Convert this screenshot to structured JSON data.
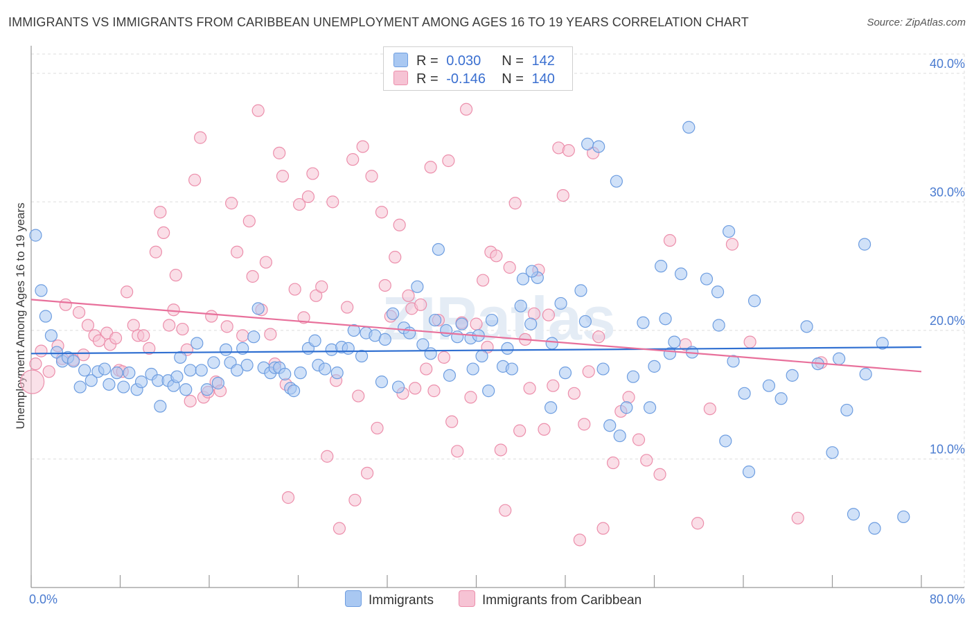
{
  "title": "IMMIGRANTS VS IMMIGRANTS FROM CARIBBEAN UNEMPLOYMENT AMONG AGES 16 TO 19 YEARS CORRELATION CHART",
  "source": "Source: ZipAtlas.com",
  "watermark": "ZIPatlas",
  "legend": {
    "r_label": "R =",
    "n_label": "N =",
    "series": [
      {
        "r": "0.030",
        "n": "142"
      },
      {
        "r": "-0.146",
        "n": "140"
      }
    ]
  },
  "bottom_legend": [
    "Immigrants",
    "Immigrants from Caribbean"
  ],
  "colors": {
    "blue_fill": "#a9c8f2",
    "blue_stroke": "#6d9de0",
    "blue_line": "#2f6fd1",
    "pink_fill": "#f6c3d4",
    "pink_stroke": "#ec8eab",
    "pink_line": "#e8709b",
    "axis_text": "#4a7bd0",
    "grid": "#dddddd"
  },
  "chart_data": {
    "type": "scatter",
    "title": "IMMIGRANTS VS IMMIGRANTS FROM CARIBBEAN UNEMPLOYMENT AMONG AGES 16 TO 19 YEARS CORRELATION CHART",
    "xlabel": "",
    "ylabel": "Unemployment Among Ages 16 to 19 years",
    "xlim": [
      0,
      80
    ],
    "ylim": [
      0,
      41.5
    ],
    "x_tick_labels": [
      {
        "value": 0,
        "label": "0.0%"
      },
      {
        "value": 80,
        "label": "80.0%"
      }
    ],
    "y_tick_labels": [
      {
        "value": 10,
        "label": "10.0%"
      },
      {
        "value": 20,
        "label": "20.0%"
      },
      {
        "value": 30,
        "label": "30.0%"
      },
      {
        "value": 40,
        "label": "40.0%"
      }
    ],
    "series": [
      {
        "name": "Immigrants",
        "r": 0.03,
        "n": 142,
        "trend": {
          "x0": 0,
          "y0": 18.2,
          "x1": 80,
          "y1": 18.7
        },
        "points": [
          [
            0.4,
            27.4
          ],
          [
            0.9,
            23.1
          ],
          [
            1.3,
            21.1
          ],
          [
            1.8,
            19.6
          ],
          [
            2.3,
            18.3
          ],
          [
            2.8,
            17.6
          ],
          [
            3.3,
            17.9
          ],
          [
            3.8,
            17.6
          ],
          [
            4.4,
            15.6
          ],
          [
            4.8,
            16.9
          ],
          [
            5.4,
            16.1
          ],
          [
            6.0,
            16.8
          ],
          [
            6.6,
            17.0
          ],
          [
            7.0,
            15.8
          ],
          [
            7.7,
            16.7
          ],
          [
            8.3,
            15.6
          ],
          [
            8.8,
            16.7
          ],
          [
            9.5,
            15.4
          ],
          [
            9.9,
            16.0
          ],
          [
            10.8,
            16.6
          ],
          [
            11.4,
            16.1
          ],
          [
            11.6,
            14.1
          ],
          [
            12.3,
            16.1
          ],
          [
            12.8,
            15.7
          ],
          [
            13.1,
            16.4
          ],
          [
            13.4,
            17.9
          ],
          [
            13.9,
            15.4
          ],
          [
            14.3,
            16.9
          ],
          [
            14.9,
            19.0
          ],
          [
            15.3,
            16.9
          ],
          [
            15.8,
            15.4
          ],
          [
            16.4,
            17.5
          ],
          [
            16.8,
            15.9
          ],
          [
            17.5,
            18.5
          ],
          [
            17.9,
            17.5
          ],
          [
            18.5,
            16.9
          ],
          [
            19.0,
            18.6
          ],
          [
            19.4,
            17.3
          ],
          [
            20.0,
            19.5
          ],
          [
            20.4,
            21.7
          ],
          [
            20.9,
            17.1
          ],
          [
            21.5,
            16.7
          ],
          [
            21.9,
            17.1
          ],
          [
            22.3,
            17.1
          ],
          [
            22.8,
            16.6
          ],
          [
            23.3,
            15.5
          ],
          [
            23.6,
            15.3
          ],
          [
            24.2,
            16.7
          ],
          [
            24.9,
            18.6
          ],
          [
            25.5,
            19.2
          ],
          [
            25.8,
            17.3
          ],
          [
            26.4,
            17.0
          ],
          [
            27.0,
            18.5
          ],
          [
            27.5,
            16.7
          ],
          [
            27.9,
            18.7
          ],
          [
            28.5,
            18.6
          ],
          [
            29.0,
            20.0
          ],
          [
            29.7,
            18.0
          ],
          [
            30.1,
            19.8
          ],
          [
            30.9,
            19.6
          ],
          [
            31.5,
            16.0
          ],
          [
            31.8,
            19.3
          ],
          [
            32.5,
            21.3
          ],
          [
            33.0,
            15.6
          ],
          [
            33.5,
            20.2
          ],
          [
            34.0,
            19.8
          ],
          [
            34.7,
            23.4
          ],
          [
            35.2,
            18.9
          ],
          [
            35.9,
            18.2
          ],
          [
            36.3,
            20.8
          ],
          [
            36.6,
            26.3
          ],
          [
            37.3,
            20.0
          ],
          [
            37.6,
            16.5
          ],
          [
            38.3,
            19.5
          ],
          [
            38.7,
            20.5
          ],
          [
            39.5,
            19.4
          ],
          [
            39.7,
            17.0
          ],
          [
            40.2,
            19.6
          ],
          [
            40.5,
            18.0
          ],
          [
            41.1,
            15.3
          ],
          [
            41.4,
            20.8
          ],
          [
            42.4,
            17.2
          ],
          [
            42.8,
            18.6
          ],
          [
            43.2,
            17.0
          ],
          [
            44.0,
            21.9
          ],
          [
            44.2,
            24.0
          ],
          [
            44.9,
            20.5
          ],
          [
            45.5,
            24.1
          ],
          [
            45.0,
            24.6
          ],
          [
            46.7,
            14.0
          ],
          [
            46.8,
            19.0
          ],
          [
            47.6,
            22.1
          ],
          [
            48.0,
            16.7
          ],
          [
            49.4,
            23.1
          ],
          [
            49.8,
            20.7
          ],
          [
            50.0,
            34.5
          ],
          [
            51.0,
            34.3
          ],
          [
            51.4,
            17.0
          ],
          [
            52.0,
            12.6
          ],
          [
            52.6,
            31.6
          ],
          [
            52.9,
            11.8
          ],
          [
            53.5,
            14.0
          ],
          [
            54.1,
            16.4
          ],
          [
            55.0,
            20.6
          ],
          [
            55.6,
            14.0
          ],
          [
            56.0,
            17.2
          ],
          [
            56.6,
            25.0
          ],
          [
            57.0,
            20.9
          ],
          [
            57.4,
            18.2
          ],
          [
            57.8,
            19.1
          ],
          [
            58.4,
            24.4
          ],
          [
            59.1,
            35.8
          ],
          [
            59.4,
            18.3
          ],
          [
            60.7,
            24.0
          ],
          [
            61.7,
            23.0
          ],
          [
            61.8,
            20.4
          ],
          [
            62.4,
            11.4
          ],
          [
            62.7,
            27.7
          ],
          [
            63.1,
            17.6
          ],
          [
            64.1,
            15.1
          ],
          [
            64.5,
            9.0
          ],
          [
            65.0,
            22.3
          ],
          [
            66.3,
            15.7
          ],
          [
            67.4,
            14.7
          ],
          [
            68.4,
            16.5
          ],
          [
            69.7,
            20.3
          ],
          [
            70.7,
            17.4
          ],
          [
            72.0,
            10.5
          ],
          [
            72.6,
            17.8
          ],
          [
            73.3,
            13.8
          ],
          [
            73.9,
            5.7
          ],
          [
            74.9,
            26.7
          ],
          [
            75.0,
            16.6
          ],
          [
            75.8,
            4.6
          ],
          [
            76.5,
            19.0
          ],
          [
            78.4,
            5.5
          ]
        ]
      },
      {
        "name": "Immigrants from Caribbean",
        "r": -0.146,
        "n": 140,
        "trend": {
          "x0": 0,
          "y0": 22.4,
          "x1": 80,
          "y1": 16.8
        },
        "points": [
          [
            0.1,
            16.0
          ],
          [
            0.4,
            17.4
          ],
          [
            0.9,
            18.4
          ],
          [
            1.6,
            16.8
          ],
          [
            2.4,
            18.8
          ],
          [
            2.8,
            17.8
          ],
          [
            3.1,
            22.0
          ],
          [
            3.8,
            17.7
          ],
          [
            4.3,
            21.4
          ],
          [
            4.7,
            18.1
          ],
          [
            5.1,
            20.4
          ],
          [
            5.7,
            19.6
          ],
          [
            6.1,
            19.2
          ],
          [
            6.8,
            19.8
          ],
          [
            7.1,
            18.9
          ],
          [
            7.6,
            19.4
          ],
          [
            7.9,
            16.9
          ],
          [
            8.2,
            16.8
          ],
          [
            8.6,
            23.0
          ],
          [
            9.2,
            20.4
          ],
          [
            9.6,
            19.6
          ],
          [
            10.1,
            19.6
          ],
          [
            10.6,
            18.6
          ],
          [
            11.2,
            26.1
          ],
          [
            11.6,
            29.2
          ],
          [
            11.9,
            27.6
          ],
          [
            12.4,
            20.4
          ],
          [
            12.8,
            21.6
          ],
          [
            13.0,
            24.3
          ],
          [
            13.6,
            20.1
          ],
          [
            14.0,
            18.5
          ],
          [
            14.3,
            14.5
          ],
          [
            14.7,
            31.7
          ],
          [
            15.2,
            35.0
          ],
          [
            15.5,
            14.8
          ],
          [
            15.9,
            15.2
          ],
          [
            16.2,
            21.1
          ],
          [
            16.6,
            16.0
          ],
          [
            17.0,
            15.3
          ],
          [
            17.6,
            20.3
          ],
          [
            18.0,
            29.9
          ],
          [
            18.5,
            26.1
          ],
          [
            19.0,
            19.6
          ],
          [
            19.6,
            28.5
          ],
          [
            19.9,
            24.2
          ],
          [
            20.4,
            37.1
          ],
          [
            20.7,
            21.6
          ],
          [
            21.1,
            25.3
          ],
          [
            21.5,
            19.7
          ],
          [
            21.9,
            17.4
          ],
          [
            22.3,
            33.8
          ],
          [
            22.6,
            32.0
          ],
          [
            22.9,
            15.8
          ],
          [
            23.1,
            7.0
          ],
          [
            23.7,
            23.2
          ],
          [
            24.1,
            29.8
          ],
          [
            24.5,
            21.0
          ],
          [
            24.9,
            30.4
          ],
          [
            25.3,
            32.2
          ],
          [
            25.6,
            22.7
          ],
          [
            26.1,
            23.4
          ],
          [
            26.6,
            10.2
          ],
          [
            27.1,
            30.0
          ],
          [
            27.4,
            16.1
          ],
          [
            27.7,
            4.6
          ],
          [
            28.4,
            21.8
          ],
          [
            28.9,
            33.3
          ],
          [
            29.1,
            6.8
          ],
          [
            29.4,
            14.9
          ],
          [
            29.8,
            34.3
          ],
          [
            30.2,
            8.9
          ],
          [
            30.6,
            32.0
          ],
          [
            31.1,
            12.4
          ],
          [
            31.5,
            29.2
          ],
          [
            31.8,
            23.5
          ],
          [
            32.3,
            21.1
          ],
          [
            32.7,
            25.7
          ],
          [
            33.1,
            28.2
          ],
          [
            33.4,
            15.1
          ],
          [
            33.9,
            22.7
          ],
          [
            34.2,
            21.7
          ],
          [
            34.5,
            15.5
          ],
          [
            35.0,
            22.0
          ],
          [
            35.5,
            17.0
          ],
          [
            35.9,
            32.7
          ],
          [
            36.2,
            15.3
          ],
          [
            36.6,
            20.8
          ],
          [
            37.1,
            17.9
          ],
          [
            37.5,
            33.2
          ],
          [
            37.8,
            12.9
          ],
          [
            38.3,
            10.6
          ],
          [
            38.7,
            20.6
          ],
          [
            39.1,
            37.2
          ],
          [
            39.5,
            14.8
          ],
          [
            40.0,
            20.5
          ],
          [
            40.6,
            23.9
          ],
          [
            41.0,
            18.7
          ],
          [
            41.3,
            26.1
          ],
          [
            41.8,
            25.8
          ],
          [
            42.2,
            10.7
          ],
          [
            42.6,
            6.0
          ],
          [
            43.0,
            24.9
          ],
          [
            43.5,
            29.9
          ],
          [
            43.9,
            12.2
          ],
          [
            44.4,
            19.3
          ],
          [
            44.8,
            15.5
          ],
          [
            45.2,
            21.3
          ],
          [
            45.6,
            24.7
          ],
          [
            46.1,
            12.3
          ],
          [
            46.5,
            21.2
          ],
          [
            46.9,
            15.7
          ],
          [
            47.4,
            34.2
          ],
          [
            47.8,
            30.5
          ],
          [
            48.3,
            34.0
          ],
          [
            48.8,
            15.1
          ],
          [
            49.3,
            3.7
          ],
          [
            49.7,
            12.7
          ],
          [
            50.1,
            16.8
          ],
          [
            50.5,
            33.8
          ],
          [
            51.0,
            19.5
          ],
          [
            51.4,
            4.6
          ],
          [
            52.3,
            9.7
          ],
          [
            53.0,
            13.7
          ],
          [
            53.7,
            14.8
          ],
          [
            54.6,
            11.5
          ],
          [
            55.3,
            9.9
          ],
          [
            56.5,
            8.8
          ],
          [
            57.4,
            27.0
          ],
          [
            58.8,
            18.9
          ],
          [
            59.9,
            5.0
          ],
          [
            61.0,
            13.9
          ],
          [
            63.0,
            26.7
          ],
          [
            64.6,
            19.1
          ],
          [
            68.9,
            5.4
          ],
          [
            71.0,
            17.5
          ]
        ]
      }
    ]
  }
}
